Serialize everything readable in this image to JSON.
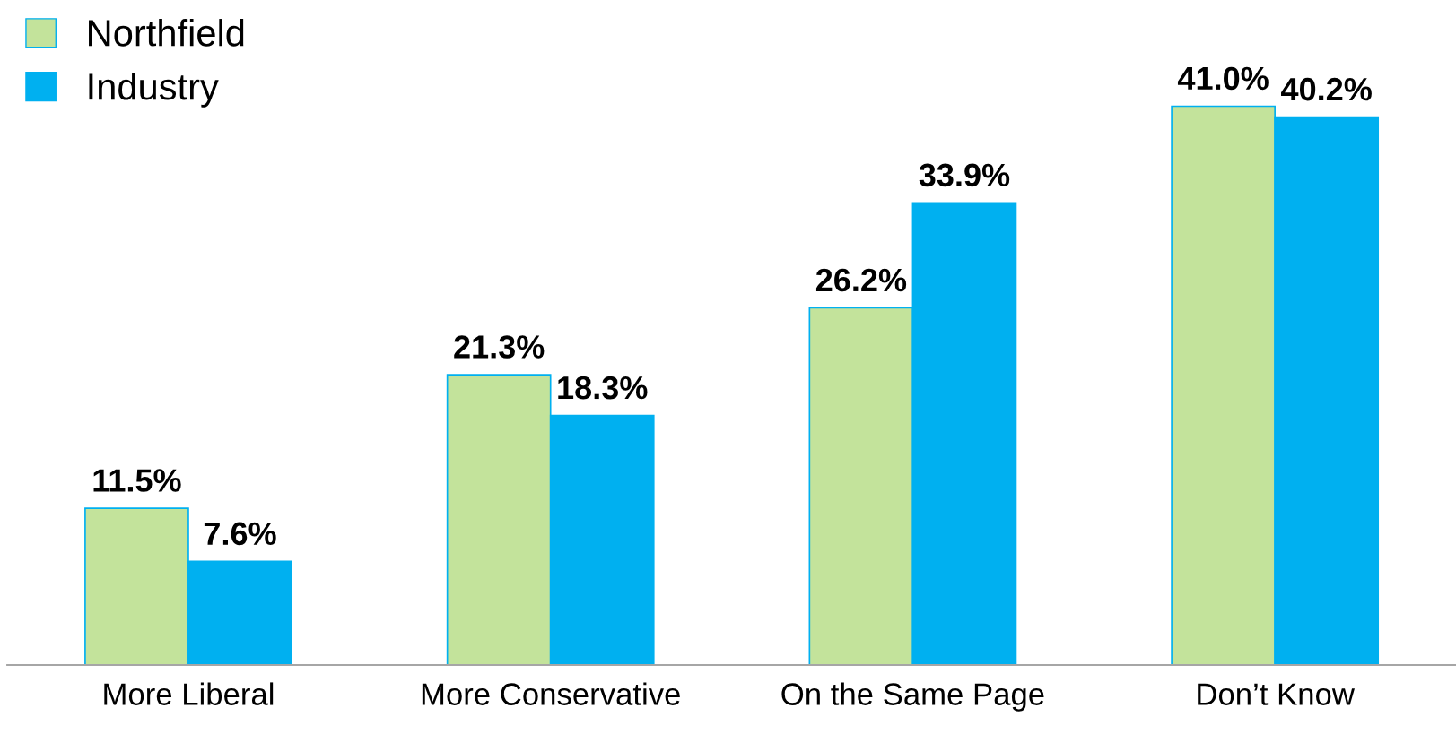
{
  "chart_data": {
    "type": "bar",
    "categories": [
      "More Liberal",
      "More Conservative",
      "On the Same Page",
      "Don’t Know"
    ],
    "series": [
      {
        "name": "Northfield",
        "color": "#c3e39b",
        "values": [
          11.5,
          21.3,
          26.2,
          41.0
        ],
        "value_labels": [
          "11.5%",
          "21.3%",
          "26.2%",
          "41.0%"
        ]
      },
      {
        "name": "Industry",
        "color": "#00b0f0",
        "values": [
          7.6,
          18.3,
          33.9,
          40.2
        ],
        "value_labels": [
          "7.6%",
          "18.3%",
          "33.9%",
          "40.2%"
        ]
      }
    ],
    "legend": "top left",
    "grid": false
  }
}
